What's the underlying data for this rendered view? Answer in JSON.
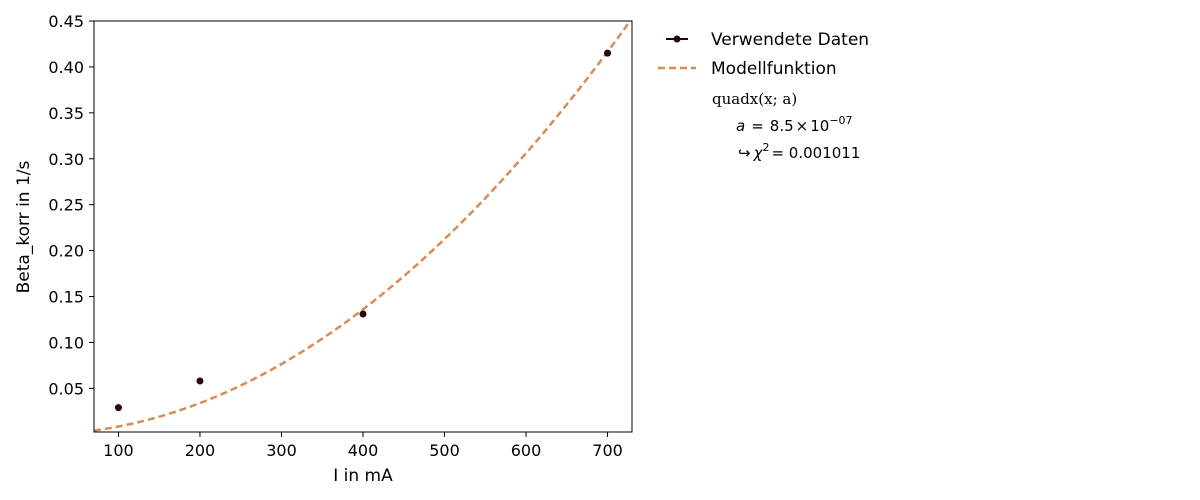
{
  "chart_data": {
    "type": "scatter",
    "xlabel": "I in mA",
    "ylabel": "Beta_korr in 1/s",
    "xlim": [
      70,
      730
    ],
    "ylim": [
      0.0025,
      0.45
    ],
    "xticks": [
      100,
      200,
      300,
      400,
      500,
      600,
      700
    ],
    "xtick_labels": [
      "100",
      "200",
      "300",
      "400",
      "500",
      "600",
      "700"
    ],
    "yticks": [
      0.05,
      0.1,
      0.15,
      0.2,
      0.25,
      0.3,
      0.35,
      0.4,
      0.45
    ],
    "ytick_labels": [
      "0.05",
      "0.10",
      "0.15",
      "0.20",
      "0.25",
      "0.30",
      "0.35",
      "0.40",
      "0.45"
    ],
    "grid": false,
    "legend_position": "outside-right",
    "series": [
      {
        "name": "Verwendete Daten",
        "kind": "points",
        "color": "#2a0505",
        "x": [
          100,
          200,
          400,
          700
        ],
        "y": [
          0.029,
          0.058,
          0.131,
          0.415
        ]
      },
      {
        "name": "Modellfunktion",
        "kind": "dashed-line",
        "color": "#d98b56",
        "model": "quadratic",
        "a": 8.5e-07
      }
    ],
    "fit_info": {
      "function": "quadx(x; a)",
      "param_name": "a",
      "param_equals": "=",
      "param_mantissa": "8.5",
      "param_times": "×",
      "param_base": "10",
      "param_exponent": "−07",
      "arrow": "↪",
      "chi_symbol": "χ",
      "chi_exponent": "2",
      "chi_value": "= 0.001011"
    }
  }
}
